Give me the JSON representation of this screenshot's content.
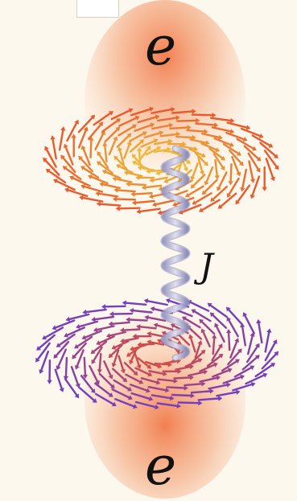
{
  "labels": {
    "electron_top": "e",
    "electron_bottom": "e",
    "coupling": "J"
  },
  "colors": {
    "background": "#fdf8ee",
    "cloud": "#f07040",
    "spring": "#b8b8d8",
    "top_field_outer": "#e8502a",
    "top_field_inner": "#f0d040",
    "bottom_field_outer": "#6a3cc8",
    "bottom_field_inner": "#e8502a"
  },
  "icons": {
    "field_arrows": "arrow-vector-icon",
    "coupling_spring": "spring-helix-icon"
  }
}
